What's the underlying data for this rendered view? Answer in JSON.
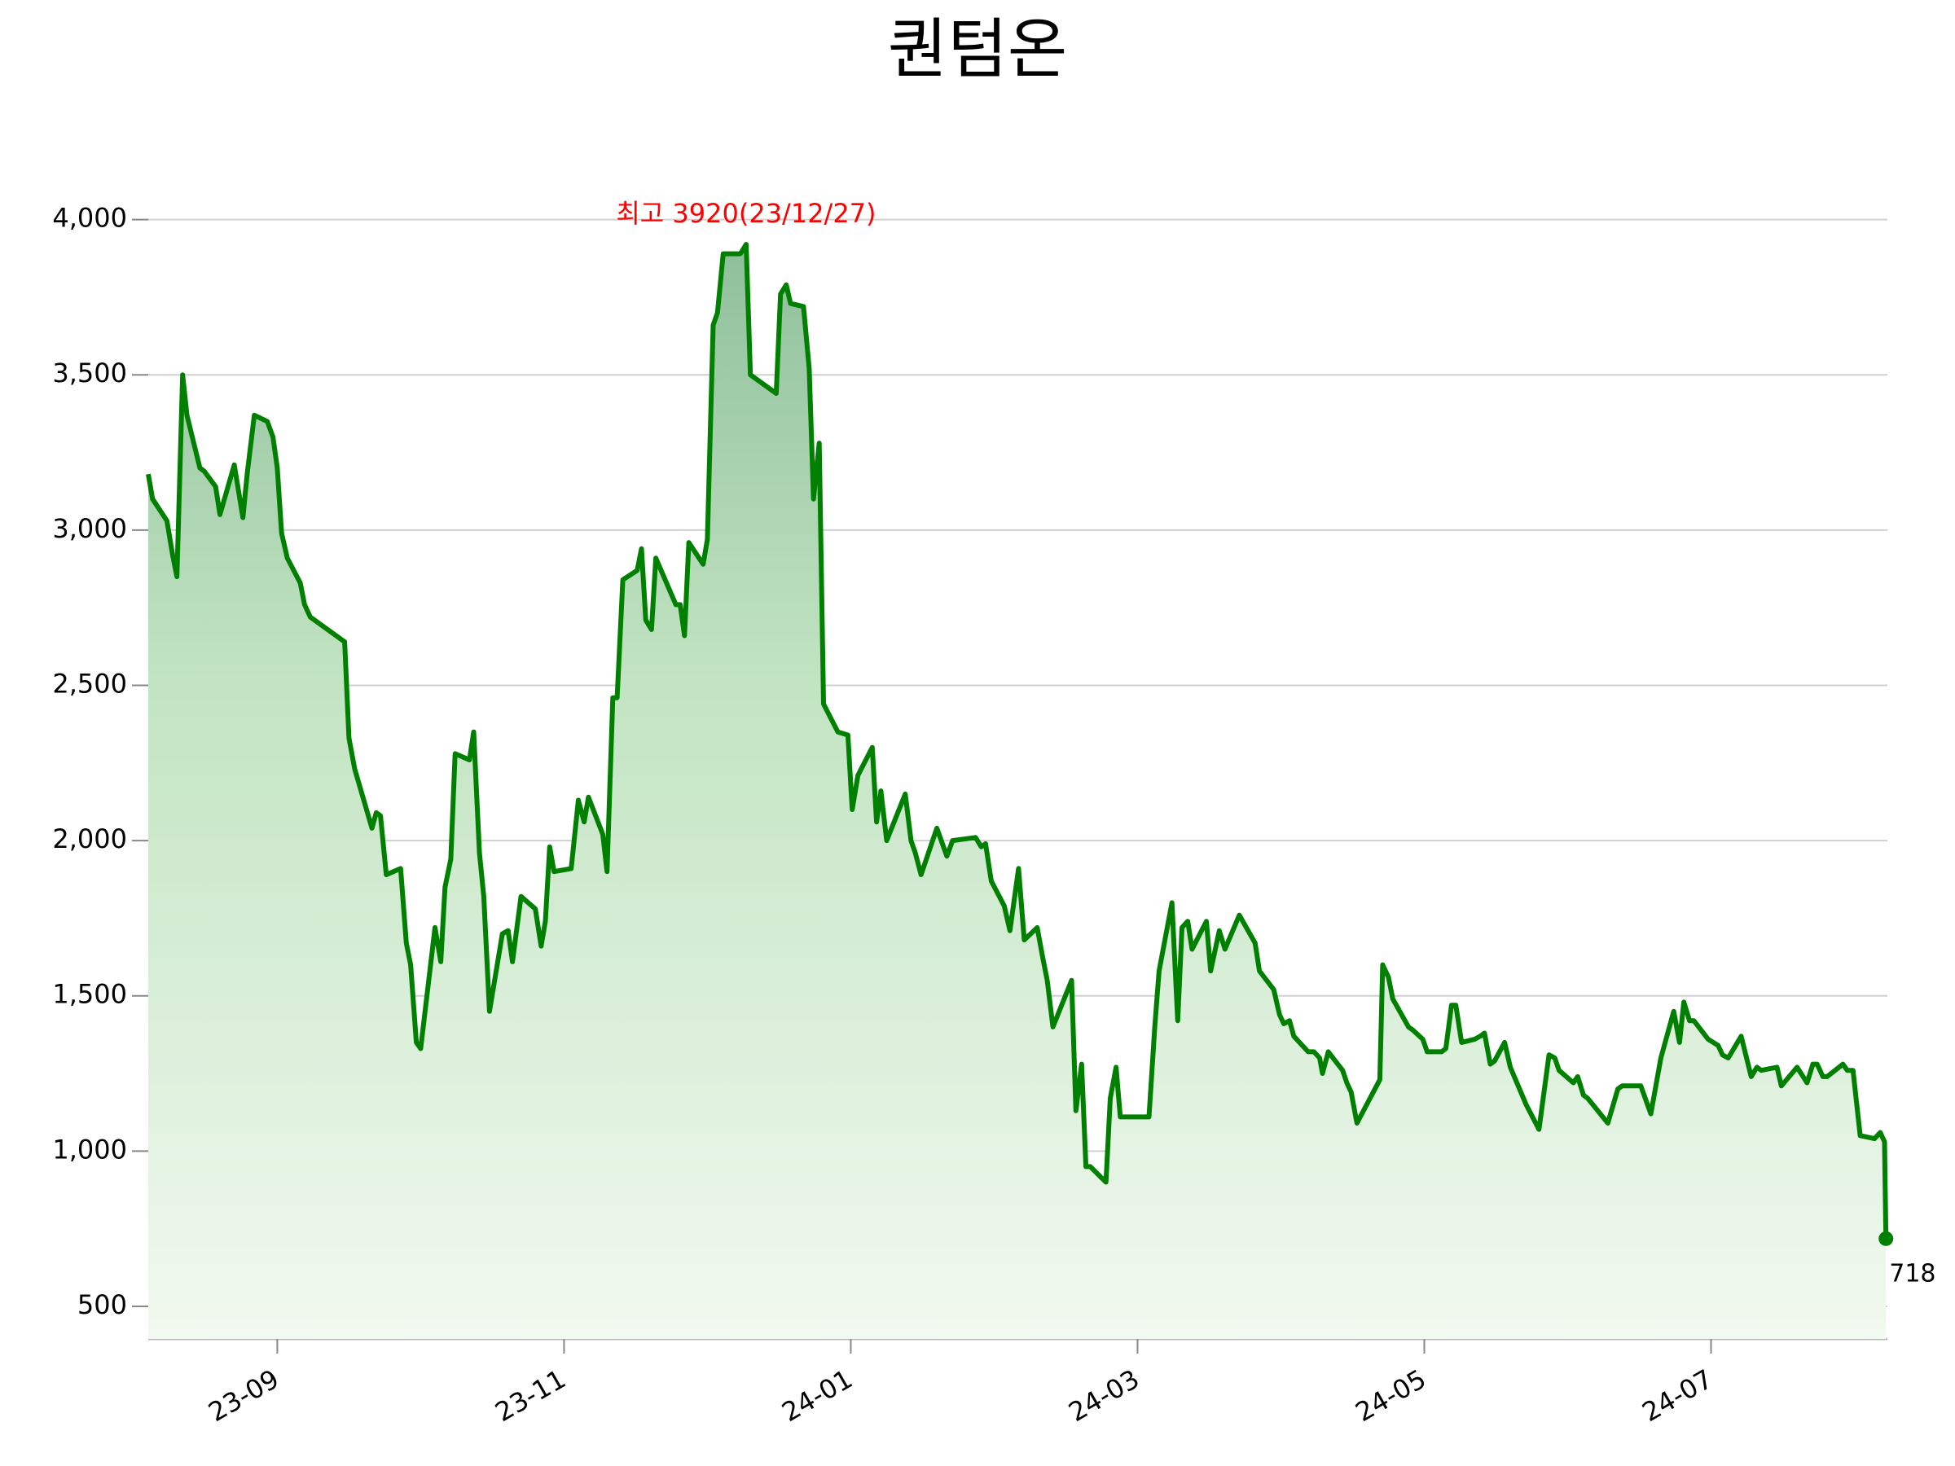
{
  "chart_data": {
    "type": "line",
    "title": "퀀텀온",
    "annotation": "최고 3920(23/12/27)",
    "annotation_color": "#ff0000",
    "color": "#008000",
    "grid": true,
    "xlim": [
      8.1,
      20.23
    ],
    "xticks": [
      {
        "value": 9,
        "label": "23-09"
      },
      {
        "value": 11,
        "label": "23-11"
      },
      {
        "value": 13,
        "label": "24-01"
      },
      {
        "value": 15,
        "label": "24-03"
      },
      {
        "value": 17,
        "label": "24-05"
      },
      {
        "value": 19,
        "label": "24-07"
      }
    ],
    "ylim": [
      395,
      4180
    ],
    "yticks": [
      500,
      {
        "value": 1000,
        "label": "1,000"
      },
      {
        "value": 1500,
        "label": "1,500"
      },
      {
        "value": 2000,
        "label": "2,000"
      },
      {
        "value": 2500,
        "label": "2,500"
      },
      {
        "value": 3000,
        "label": "3,000"
      },
      {
        "value": 3500,
        "label": "3,500"
      },
      {
        "value": 4000,
        "label": "4,000"
      }
    ],
    "x": [
      8.1,
      8.13,
      8.23,
      8.27,
      8.3,
      8.34,
      8.37,
      8.46,
      8.49,
      8.57,
      8.6,
      8.7,
      8.76,
      8.79,
      8.84,
      8.93,
      8.97,
      9.0,
      9.03,
      9.07,
      9.16,
      9.19,
      9.23,
      9.47,
      9.5,
      9.54,
      9.66,
      9.69,
      9.72,
      9.76,
      9.86,
      9.9,
      9.93,
      9.97,
      10.0,
      10.1,
      10.14,
      10.17,
      10.21,
      10.24,
      10.34,
      10.37,
      10.41,
      10.44,
      10.48,
      10.57,
      10.61,
      10.64,
      10.7,
      10.8,
      10.84,
      10.87,
      10.9,
      10.93,
      11.05,
      11.1,
      11.14,
      11.17,
      11.27,
      11.3,
      11.34,
      11.37,
      11.41,
      11.51,
      11.54,
      11.57,
      11.61,
      11.64,
      11.78,
      11.81,
      11.84,
      11.87,
      11.97,
      12.0,
      12.04,
      12.07,
      12.11,
      12.23,
      12.27,
      12.3,
      12.48,
      12.51,
      12.55,
      12.58,
      12.67,
      12.71,
      12.74,
      12.78,
      12.81,
      12.91,
      12.98,
      13.01,
      13.05,
      13.15,
      13.18,
      13.21,
      13.25,
      13.38,
      13.42,
      13.45,
      13.49,
      13.6,
      13.67,
      13.71,
      13.87,
      13.91,
      13.94,
      13.98,
      14.07,
      14.11,
      14.17,
      14.21,
      14.3,
      14.34,
      14.37,
      14.41,
      14.54,
      14.57,
      14.61,
      14.64,
      14.67,
      14.78,
      14.81,
      14.85,
      14.88,
      15.08,
      15.12,
      15.15,
      15.24,
      15.28,
      15.31,
      15.35,
      15.38,
      15.48,
      15.51,
      15.57,
      15.61,
      15.71,
      15.82,
      15.85,
      15.95,
      15.99,
      16.02,
      16.06,
      16.09,
      16.19,
      16.23,
      16.27,
      16.29,
      16.33,
      16.43,
      16.46,
      16.49,
      16.53,
      16.69,
      16.71,
      16.75,
      16.78,
      16.89,
      16.92,
      16.99,
      17.02,
      17.12,
      17.15,
      17.19,
      17.22,
      17.26,
      17.35,
      17.39,
      17.42,
      17.46,
      17.49,
      17.56,
      17.6,
      17.71,
      17.8,
      17.87,
      17.91,
      17.94,
      18.04,
      18.07,
      18.11,
      18.14,
      18.28,
      18.35,
      18.38,
      18.51,
      18.58,
      18.65,
      18.74,
      18.78,
      18.81,
      18.85,
      18.88,
      18.98,
      19.05,
      19.08,
      19.12,
      19.21,
      19.28,
      19.32,
      19.35,
      19.46,
      19.49,
      19.6,
      19.67,
      19.71,
      19.74,
      19.78,
      19.81,
      19.92,
      19.95,
      19.99,
      20.04,
      20.14,
      20.18,
      20.21,
      20.22
    ],
    "values": [
      3180,
      3100,
      3030,
      2920,
      2850,
      3500,
      3370,
      3200,
      3190,
      3140,
      3050,
      3210,
      3040,
      3180,
      3370,
      3350,
      3300,
      3200,
      2990,
      2910,
      2830,
      2760,
      2720,
      2640,
      2330,
      2230,
      2040,
      2090,
      2080,
      1890,
      1910,
      1670,
      1600,
      1350,
      1330,
      1720,
      1610,
      1850,
      1940,
      2280,
      2260,
      2350,
      1960,
      1820,
      1450,
      1700,
      1710,
      1610,
      1820,
      1780,
      1660,
      1740,
      1980,
      1900,
      1910,
      2130,
      2060,
      2140,
      2020,
      1900,
      2460,
      2460,
      2840,
      2870,
      2940,
      2710,
      2680,
      2910,
      2760,
      2760,
      2660,
      2960,
      2890,
      2970,
      3660,
      3700,
      3890,
      3890,
      3920,
      3500,
      3440,
      3760,
      3790,
      3730,
      3720,
      3520,
      3100,
      3280,
      2440,
      2350,
      2340,
      2100,
      2210,
      2300,
      2060,
      2160,
      2000,
      2150,
      2000,
      1960,
      1890,
      2040,
      1950,
      2000,
      2010,
      1980,
      1990,
      1870,
      1790,
      1710,
      1910,
      1680,
      1720,
      1620,
      1550,
      1400,
      1550,
      1130,
      1280,
      950,
      950,
      900,
      1170,
      1270,
      1110,
      1110,
      1400,
      1580,
      1800,
      1420,
      1720,
      1740,
      1650,
      1740,
      1580,
      1710,
      1650,
      1760,
      1670,
      1580,
      1520,
      1440,
      1410,
      1420,
      1370,
      1320,
      1320,
      1300,
      1250,
      1320,
      1260,
      1220,
      1190,
      1090,
      1230,
      1600,
      1560,
      1490,
      1400,
      1390,
      1360,
      1320,
      1320,
      1330,
      1470,
      1470,
      1350,
      1360,
      1370,
      1380,
      1280,
      1290,
      1350,
      1270,
      1150,
      1070,
      1310,
      1300,
      1260,
      1220,
      1240,
      1180,
      1170,
      1090,
      1200,
      1210,
      1210,
      1120,
      1300,
      1450,
      1350,
      1480,
      1420,
      1420,
      1360,
      1340,
      1310,
      1300,
      1370,
      1240,
      1270,
      1260,
      1270,
      1210,
      1270,
      1220,
      1280,
      1280,
      1240,
      1240,
      1280,
      1260,
      1260,
      1050,
      1040,
      1060,
      1030,
      718
    ]
  }
}
